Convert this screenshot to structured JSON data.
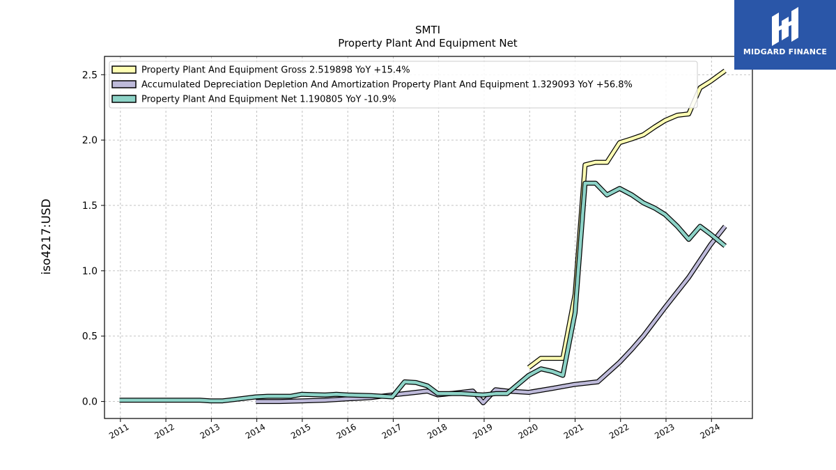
{
  "logo": {
    "text": "MIDGARD FINANCE"
  },
  "chart_data": {
    "type": "line",
    "title": "SMTI",
    "subtitle": "Property Plant And Equipment Net",
    "ylabel": "iso4217:USD",
    "xlabel": "",
    "xlim": [
      2010.65,
      2024.9
    ],
    "ylim": [
      -0.13,
      2.64
    ],
    "x_ticks": [
      "2011",
      "2012",
      "2013",
      "2014",
      "2015",
      "2016",
      "2017",
      "2018",
      "2019",
      "2020",
      "2021",
      "2022",
      "2023",
      "2024"
    ],
    "y_ticks": [
      "0.0",
      "0.5",
      "1.0",
      "1.5",
      "2.0",
      "2.5"
    ],
    "grid": true,
    "legend_position": "top-left",
    "series": [
      {
        "name": "Property Plant And Equipment Gross",
        "legend": "Property Plant And Equipment Gross  2.519898 YoY +15.4%",
        "color": "#ffffb3",
        "points": [
          [
            2019.98,
            0.26
          ],
          [
            2020.25,
            0.33
          ],
          [
            2020.5,
            0.33
          ],
          [
            2020.73,
            0.33
          ],
          [
            2021.0,
            0.82
          ],
          [
            2021.22,
            1.81
          ],
          [
            2021.45,
            1.83
          ],
          [
            2021.7,
            1.83
          ],
          [
            2021.98,
            1.98
          ],
          [
            2022.25,
            2.01
          ],
          [
            2022.5,
            2.04
          ],
          [
            2022.75,
            2.1
          ],
          [
            2022.98,
            2.15
          ],
          [
            2023.25,
            2.19
          ],
          [
            2023.5,
            2.2
          ],
          [
            2023.75,
            2.4
          ],
          [
            2023.98,
            2.45
          ],
          [
            2024.3,
            2.53
          ]
        ]
      },
      {
        "name": "Accumulated Depreciation Depletion And Amortization Property Plant And Equipment",
        "legend": "Accumulated Depreciation Depletion And Amortization Property Plant And Equipment  1.329093 YoY +56.8%",
        "color": "#bebada",
        "points": [
          [
            2013.98,
            0.0
          ],
          [
            2014.5,
            0.0
          ],
          [
            2015.0,
            0.005
          ],
          [
            2015.5,
            0.01
          ],
          [
            2016.0,
            0.02
          ],
          [
            2016.5,
            0.03
          ],
          [
            2016.98,
            0.05
          ],
          [
            2017.25,
            0.06
          ],
          [
            2017.5,
            0.07
          ],
          [
            2017.75,
            0.08
          ],
          [
            2017.98,
            0.05
          ],
          [
            2018.25,
            0.06
          ],
          [
            2018.5,
            0.07
          ],
          [
            2018.75,
            0.08
          ],
          [
            2018.98,
            -0.01
          ],
          [
            2019.25,
            0.09
          ],
          [
            2019.5,
            0.08
          ],
          [
            2019.98,
            0.07
          ],
          [
            2020.5,
            0.1
          ],
          [
            2020.98,
            0.13
          ],
          [
            2021.5,
            0.15
          ],
          [
            2021.98,
            0.3
          ],
          [
            2022.25,
            0.4
          ],
          [
            2022.5,
            0.5
          ],
          [
            2022.98,
            0.72
          ],
          [
            2023.5,
            0.95
          ],
          [
            2023.98,
            1.2
          ],
          [
            2024.3,
            1.34
          ]
        ]
      },
      {
        "name": "Property Plant And Equipment Net",
        "legend": "Property Plant And Equipment Net  1.190805 YoY -10.9%",
        "color": "#8dd3c7",
        "points": [
          [
            2010.98,
            0.01
          ],
          [
            2011.5,
            0.01
          ],
          [
            2012.0,
            0.01
          ],
          [
            2012.5,
            0.01
          ],
          [
            2012.75,
            0.01
          ],
          [
            2012.98,
            0.005
          ],
          [
            2013.25,
            0.005
          ],
          [
            2013.5,
            0.015
          ],
          [
            2013.98,
            0.035
          ],
          [
            2014.25,
            0.04
          ],
          [
            2014.75,
            0.04
          ],
          [
            2014.98,
            0.055
          ],
          [
            2015.5,
            0.05
          ],
          [
            2015.75,
            0.055
          ],
          [
            2016.0,
            0.05
          ],
          [
            2016.5,
            0.045
          ],
          [
            2016.98,
            0.035
          ],
          [
            2017.25,
            0.15
          ],
          [
            2017.5,
            0.145
          ],
          [
            2017.75,
            0.12
          ],
          [
            2017.98,
            0.06
          ],
          [
            2018.5,
            0.06
          ],
          [
            2018.98,
            0.05
          ],
          [
            2019.25,
            0.06
          ],
          [
            2019.5,
            0.06
          ],
          [
            2019.98,
            0.2
          ],
          [
            2020.25,
            0.25
          ],
          [
            2020.5,
            0.23
          ],
          [
            2020.73,
            0.2
          ],
          [
            2021.0,
            0.68
          ],
          [
            2021.22,
            1.67
          ],
          [
            2021.45,
            1.67
          ],
          [
            2021.7,
            1.58
          ],
          [
            2021.98,
            1.63
          ],
          [
            2022.25,
            1.58
          ],
          [
            2022.5,
            1.52
          ],
          [
            2022.75,
            1.48
          ],
          [
            2022.98,
            1.43
          ],
          [
            2023.25,
            1.34
          ],
          [
            2023.5,
            1.24
          ],
          [
            2023.75,
            1.34
          ],
          [
            2023.98,
            1.28
          ],
          [
            2024.3,
            1.19
          ]
        ]
      }
    ]
  }
}
